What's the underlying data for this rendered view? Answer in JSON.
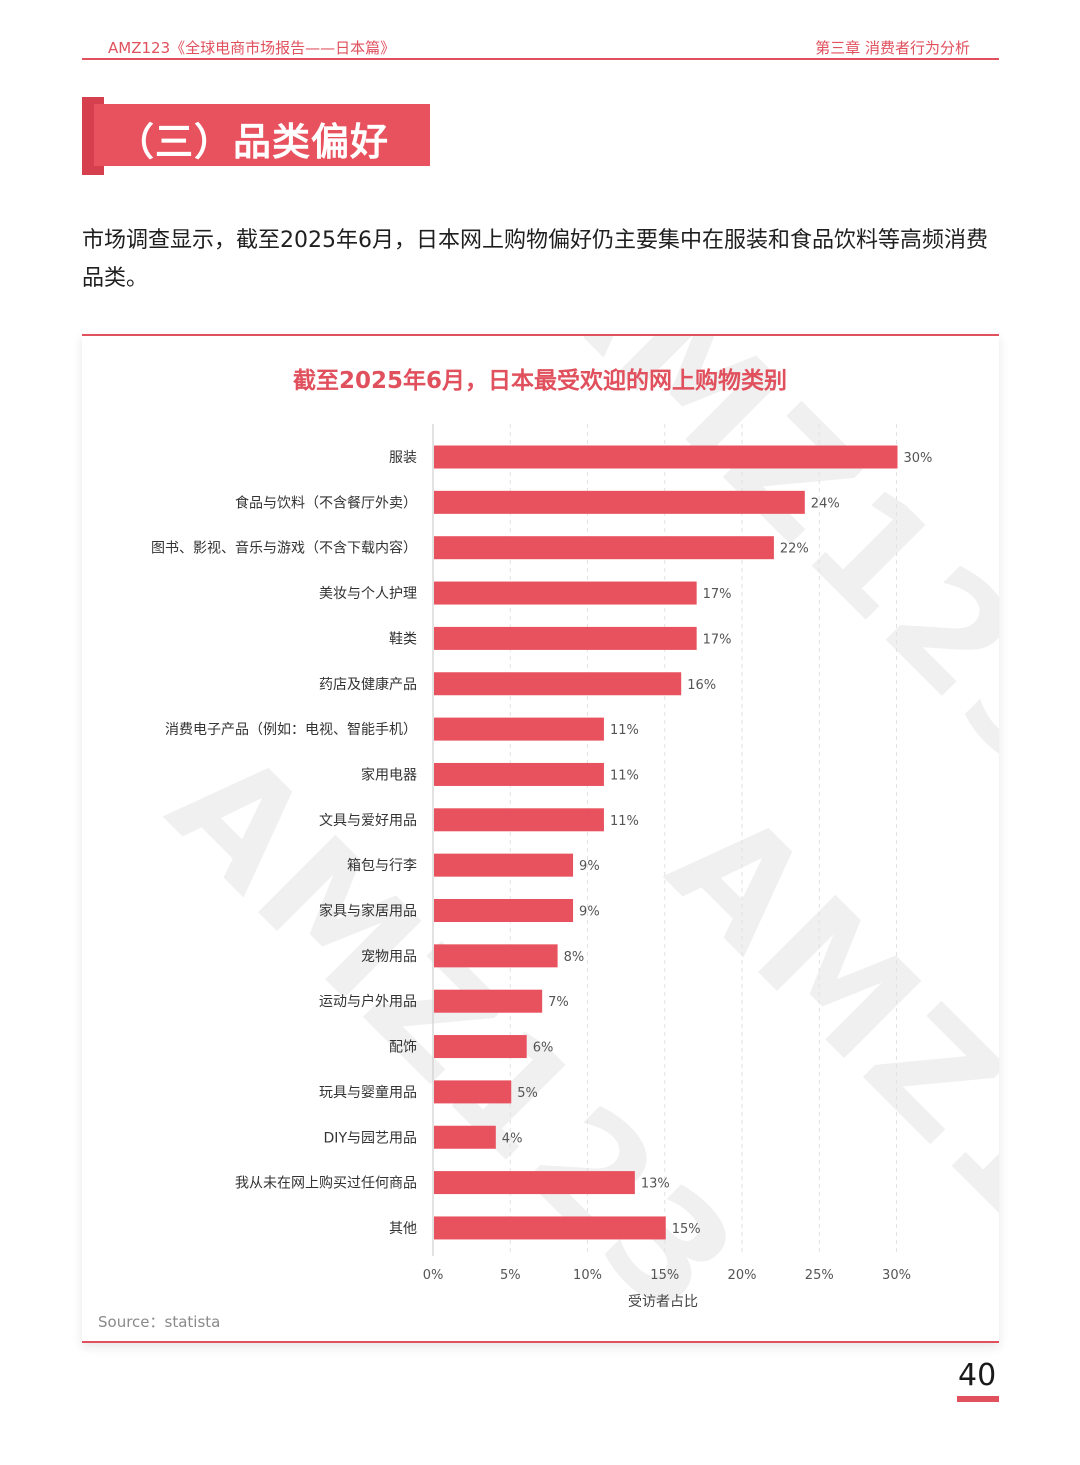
{
  "header": {
    "left": "AMZ123《全球电商市场报告——日本篇》",
    "right": "第三章  消费者行为分析"
  },
  "section": {
    "title": "（三）品类偏好"
  },
  "intro": "市场调查显示，截至2025年6月，日本网上购物偏好仍主要集中在服装和食品饮料等高频消费品类。",
  "watermark": "AMZ123",
  "colors": {
    "accent": "#e0505d",
    "bar": "#e8525e"
  },
  "chart_data": {
    "type": "bar",
    "orientation": "horizontal",
    "title": "截至2025年6月，日本最受欢迎的网上购物类别",
    "xlabel": "受访者占比",
    "ylabel": "",
    "xlim": [
      0,
      30
    ],
    "xticks": [
      "0%",
      "5%",
      "10%",
      "15%",
      "20%",
      "25%",
      "30%"
    ],
    "grid": true,
    "categories": [
      "服装",
      "食品与饮料（不含餐厅外卖）",
      "图书、影视、音乐与游戏（不含下载内容）",
      "美妆与个人护理",
      "鞋类",
      "药店及健康产品",
      "消费电子产品（例如：电视、智能手机）",
      "家用电器",
      "文具与爱好用品",
      "箱包与行李",
      "家具与家居用品",
      "宠物用品",
      "运动与户外用品",
      "配饰",
      "玩具与婴童用品",
      "DIY与园艺用品",
      "我从未在网上购买过任何商品",
      "其他"
    ],
    "values": [
      30,
      24,
      22,
      17,
      17,
      16,
      11,
      11,
      11,
      9,
      9,
      8,
      7,
      6,
      5,
      4,
      13,
      15
    ],
    "value_labels": [
      "30%",
      "24%",
      "22%",
      "17%",
      "17%",
      "16%",
      "11%",
      "11%",
      "11%",
      "9%",
      "9%",
      "8%",
      "7%",
      "6%",
      "5%",
      "4%",
      "13%",
      "15%"
    ],
    "source": "Source：statista"
  },
  "page": {
    "number": "40"
  }
}
